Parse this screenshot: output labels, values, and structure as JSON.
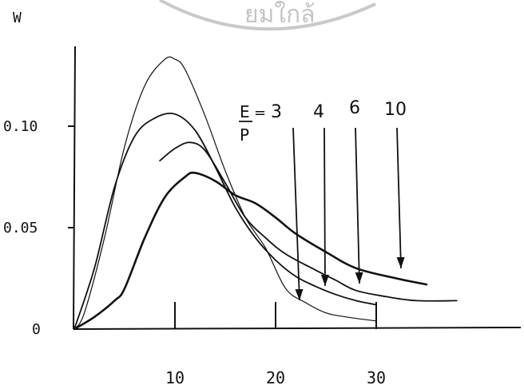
{
  "chart_data": {
    "type": "line",
    "ylabel": "W",
    "xlabel": "",
    "xlim": [
      0,
      50
    ],
    "ylim": [
      0,
      0.16
    ],
    "xticks": [
      10,
      20,
      30
    ],
    "xtick_labels": [
      "10",
      "20",
      "30"
    ],
    "yticks": [
      0,
      0.05,
      0.1
    ],
    "ytick_labels": [
      "0",
      "0.05",
      "0.10"
    ],
    "annotation": {
      "fraction_numerator": "E",
      "fraction_denominator": "P",
      "equals": "=",
      "series_values": [
        "3",
        "4",
        "6",
        "10"
      ]
    },
    "series": [
      {
        "name": "3",
        "points": [
          [
            0,
            0
          ],
          [
            1,
            0.008
          ],
          [
            3,
            0.045
          ],
          [
            5,
            0.09
          ],
          [
            7,
            0.12
          ],
          [
            9,
            0.133
          ],
          [
            10,
            0.133
          ],
          [
            11,
            0.128
          ],
          [
            13,
            0.105
          ],
          [
            15,
            0.078
          ],
          [
            17,
            0.055
          ],
          [
            19,
            0.04
          ],
          [
            21,
            0.02
          ],
          [
            23,
            0.013
          ],
          [
            25,
            0.008
          ],
          [
            27,
            0.006
          ],
          [
            30,
            0.004
          ]
        ]
      },
      {
        "name": "4",
        "points": [
          [
            0,
            0
          ],
          [
            2,
            0.03
          ],
          [
            4,
            0.07
          ],
          [
            6,
            0.095
          ],
          [
            8,
            0.104
          ],
          [
            10,
            0.106
          ],
          [
            12,
            0.098
          ],
          [
            14,
            0.08
          ],
          [
            16,
            0.06
          ],
          [
            18,
            0.045
          ],
          [
            20,
            0.034
          ],
          [
            22,
            0.026
          ],
          [
            24,
            0.021
          ],
          [
            26,
            0.017
          ],
          [
            28,
            0.014
          ],
          [
            30,
            0.012
          ]
        ]
      },
      {
        "name": "6",
        "points": [
          [
            8.5,
            0.083
          ],
          [
            10,
            0.089
          ],
          [
            11.5,
            0.092
          ],
          [
            13,
            0.088
          ],
          [
            15,
            0.072
          ],
          [
            17,
            0.055
          ],
          [
            19,
            0.045
          ],
          [
            21,
            0.037
          ],
          [
            24,
            0.029
          ],
          [
            26,
            0.024
          ],
          [
            28,
            0.019
          ],
          [
            31,
            0.016
          ],
          [
            34,
            0.014
          ],
          [
            38,
            0.014
          ]
        ]
      },
      {
        "name": "10",
        "points": [
          [
            0,
            0
          ],
          [
            2,
            0.006
          ],
          [
            4,
            0.014
          ],
          [
            5,
            0.02
          ],
          [
            7,
            0.045
          ],
          [
            9,
            0.065
          ],
          [
            11,
            0.075
          ],
          [
            12,
            0.077
          ],
          [
            14,
            0.073
          ],
          [
            16,
            0.066
          ],
          [
            18,
            0.062
          ],
          [
            20,
            0.055
          ],
          [
            22,
            0.047
          ],
          [
            25,
            0.038
          ],
          [
            28,
            0.03
          ],
          [
            32,
            0.025
          ],
          [
            35,
            0.022
          ]
        ]
      }
    ]
  },
  "watermark": {
    "text": "ยมใกล้"
  }
}
